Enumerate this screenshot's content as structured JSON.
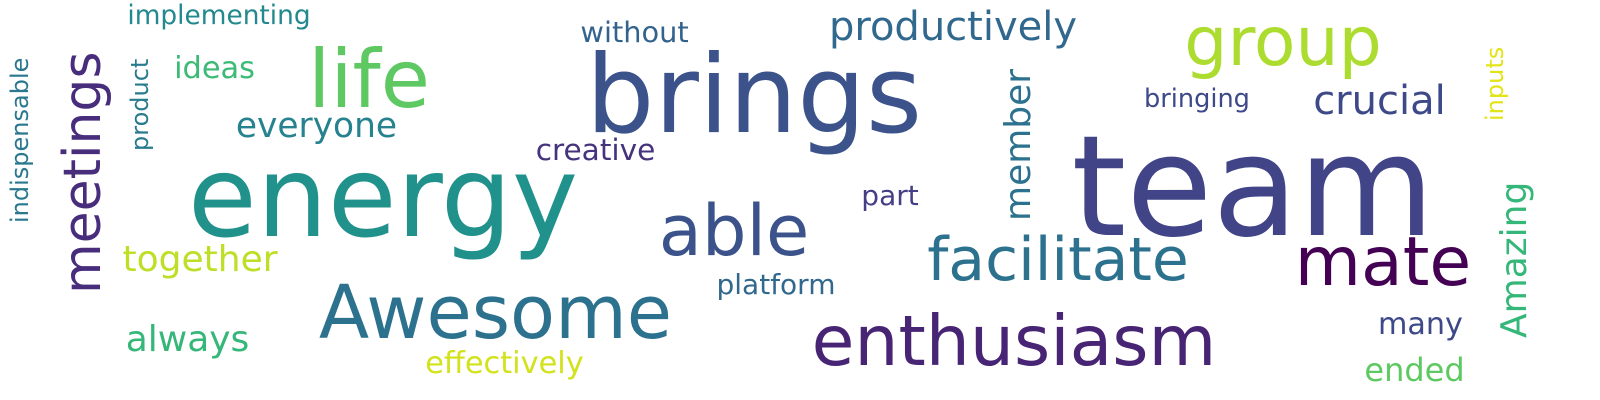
{
  "words": [
    {
      "id": "team",
      "text": "team",
      "color": "#414487"
    },
    {
      "id": "brings",
      "text": "brings",
      "color": "#3b528b"
    },
    {
      "id": "energy",
      "text": "energy",
      "color": "#21918c"
    },
    {
      "id": "group",
      "text": "group",
      "color": "#addc30"
    },
    {
      "id": "life",
      "text": "life",
      "color": "#5ec962"
    },
    {
      "id": "awesome",
      "text": "Awesome",
      "color": "#2c728e"
    },
    {
      "id": "enthusiasm",
      "text": "enthusiasm",
      "color": "#482475"
    },
    {
      "id": "mate",
      "text": "mate",
      "color": "#440154"
    },
    {
      "id": "able",
      "text": "able",
      "color": "#3b528b"
    },
    {
      "id": "facilitate",
      "text": "facilitate",
      "color": "#2c728e"
    },
    {
      "id": "meetings",
      "text": "meetings",
      "color": "#472d7b"
    },
    {
      "id": "productively",
      "text": "productively",
      "color": "#31688e"
    },
    {
      "id": "crucial",
      "text": "crucial",
      "color": "#3e4989"
    },
    {
      "id": "everyone",
      "text": "everyone",
      "color": "#26828e"
    },
    {
      "id": "member",
      "text": "member",
      "color": "#2c728e"
    },
    {
      "id": "amazing",
      "text": "Amazing",
      "color": "#35b779"
    },
    {
      "id": "together",
      "text": "together",
      "color": "#bddf26"
    },
    {
      "id": "always",
      "text": "always",
      "color": "#35b779"
    },
    {
      "id": "creative",
      "text": "creative",
      "color": "#46337e"
    },
    {
      "id": "bringing",
      "text": "bringing",
      "color": "#3e4989"
    },
    {
      "id": "platform",
      "text": "platform",
      "color": "#31688e"
    },
    {
      "id": "effectively",
      "text": "effectively",
      "color": "#d2e21b"
    },
    {
      "id": "indispensable",
      "text": "indispensable",
      "color": "#2a788e"
    },
    {
      "id": "implementing",
      "text": "implementing",
      "color": "#23898e"
    },
    {
      "id": "ideas",
      "text": "ideas",
      "color": "#3bbb75"
    },
    {
      "id": "product",
      "text": "product",
      "color": "#297b8e"
    },
    {
      "id": "without",
      "text": "without",
      "color": "#33638d"
    },
    {
      "id": "part",
      "text": "part",
      "color": "#433e85"
    },
    {
      "id": "inputs",
      "text": "inputs",
      "color": "#e2e418"
    },
    {
      "id": "many",
      "text": "many",
      "color": "#3e4989"
    },
    {
      "id": "ended",
      "text": "ended",
      "color": "#5ec962"
    }
  ]
}
